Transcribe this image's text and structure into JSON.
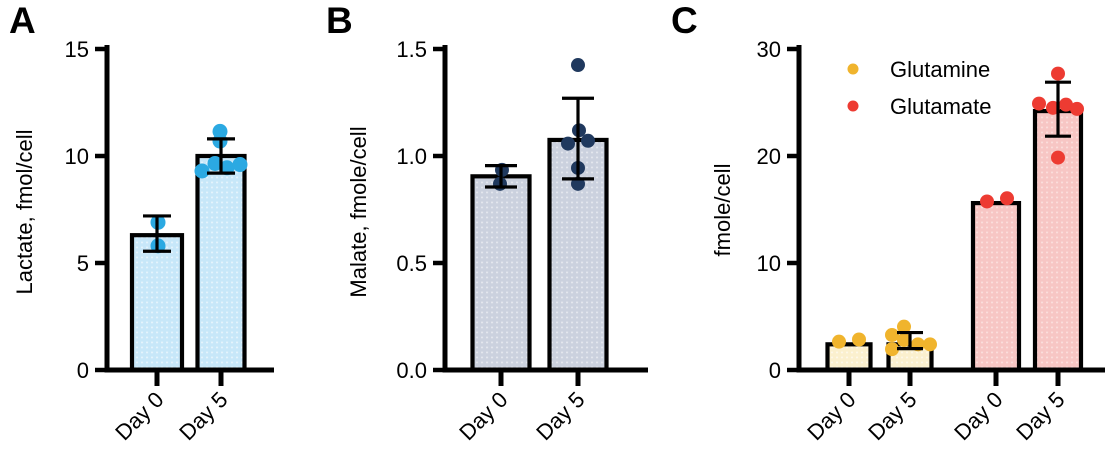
{
  "figure": {
    "background": "#ffffff",
    "axis_color": "#000000",
    "text_color": "#000000"
  },
  "chart_data": [
    {
      "panel_label": "A",
      "type": "bar",
      "title": "",
      "xlabel": "",
      "ylabel": "Lactate, fmol/cell",
      "ylim": [
        0,
        15
      ],
      "grid": false,
      "yticks": [
        {
          "v": 0,
          "label": "0"
        },
        {
          "v": 5,
          "label": "5"
        },
        {
          "v": 10,
          "label": "10"
        },
        {
          "v": 15,
          "label": "15"
        }
      ],
      "bar_fill": "#C7E7F9",
      "bar_texture": "#E4F3FC",
      "dot_color": "#2BA9E2",
      "categories": [
        "Day 0",
        "Day 5"
      ],
      "groups": [
        {
          "label": "Day 0",
          "mean": 6.3,
          "err_low": 5.55,
          "err_high": 7.2,
          "points": [
            {
              "dx": 1,
              "v": 6.9
            },
            {
              "dx": 1,
              "v": 5.8
            }
          ]
        },
        {
          "label": "Day 5",
          "mean": 10.0,
          "err_low": 9.2,
          "err_high": 10.8,
          "points": [
            {
              "dx": -1,
              "v": 11.15
            },
            {
              "dx": -1,
              "v": 10.7
            },
            {
              "dx": -19,
              "v": 9.3
            },
            {
              "dx": -6,
              "v": 9.65
            },
            {
              "dx": 6,
              "v": 9.45
            },
            {
              "dx": 19,
              "v": 9.6
            }
          ]
        }
      ]
    },
    {
      "panel_label": "B",
      "type": "bar",
      "title": "",
      "xlabel": "",
      "ylabel": "Malate, fmole/cell",
      "ylim": [
        0,
        1.5
      ],
      "grid": false,
      "yticks": [
        {
          "v": 0,
          "label": "0.0"
        },
        {
          "v": 0.5,
          "label": "0.5"
        },
        {
          "v": 1.0,
          "label": "1.0"
        },
        {
          "v": 1.5,
          "label": "1.5"
        }
      ],
      "bar_fill": "#CBD1DE",
      "bar_texture": "#E3E6ED",
      "dot_color": "#20395E",
      "categories": [
        "Day 0",
        "Day 5"
      ],
      "groups": [
        {
          "label": "Day 0",
          "mean": 0.905,
          "err_low": 0.855,
          "err_high": 0.955,
          "points": [
            {
              "dx": 1,
              "v": 0.935
            },
            {
              "dx": -1,
              "v": 0.87
            }
          ]
        },
        {
          "label": "Day 5",
          "mean": 1.075,
          "err_low": 0.893,
          "err_high": 1.27,
          "points": [
            {
              "dx": 0,
              "v": 1.425
            },
            {
              "dx": 1,
              "v": 1.12
            },
            {
              "dx": -10,
              "v": 1.058
            },
            {
              "dx": 10,
              "v": 1.071
            },
            {
              "dx": 0,
              "v": 0.944
            },
            {
              "dx": 0,
              "v": 0.87
            }
          ]
        }
      ]
    },
    {
      "panel_label": "C",
      "type": "bar",
      "title": "",
      "xlabel": "",
      "ylabel": "fmole/cell",
      "ylim": [
        0,
        30
      ],
      "grid": false,
      "yticks": [
        {
          "v": 0,
          "label": "0"
        },
        {
          "v": 10,
          "label": "10"
        },
        {
          "v": 20,
          "label": "20"
        },
        {
          "v": 30,
          "label": "30"
        }
      ],
      "series": [
        {
          "name": "Glutamine",
          "bar_fill": "#FBF0CE",
          "bar_texture": "#FDF8E9",
          "dot_color": "#F0B42D"
        },
        {
          "name": "Glutamate",
          "bar_fill": "#F7C6C4",
          "bar_texture": "#FBDDDB",
          "dot_color": "#ED3B32"
        }
      ],
      "legend": {
        "position": "top-left-inside",
        "entries": [
          "Glutamine",
          "Glutamate"
        ]
      },
      "categories": [
        "Day 0",
        "Day 5",
        "Day 0",
        "Day 5"
      ],
      "groups": [
        {
          "series": "Glutamine",
          "label": "Day 0",
          "mean": 2.4,
          "err_low": null,
          "err_high": null,
          "points": [
            {
              "dx": -10,
              "v": 2.65
            },
            {
              "dx": 10,
              "v": 2.85
            }
          ]
        },
        {
          "series": "Glutamine",
          "label": "Day 5",
          "mean": 2.4,
          "err_low": 2.0,
          "err_high": 3.5,
          "points": [
            {
              "dx": -6,
              "v": 4.05
            },
            {
              "dx": -18,
              "v": 3.27
            },
            {
              "dx": -6,
              "v": 2.8
            },
            {
              "dx": 8,
              "v": 2.4
            },
            {
              "dx": 20,
              "v": 2.4
            },
            {
              "dx": -18,
              "v": 1.95
            }
          ]
        },
        {
          "series": "Glutamate",
          "label": "Day 0",
          "mean": 15.6,
          "err_low": null,
          "err_high": null,
          "points": [
            {
              "dx": -9,
              "v": 15.75
            },
            {
              "dx": 11,
              "v": 16.05
            }
          ]
        },
        {
          "series": "Glutamate",
          "label": "Day 5",
          "mean": 24.2,
          "err_low": 21.85,
          "err_high": 26.9,
          "points": [
            {
              "dx": 0,
              "v": 27.7
            },
            {
              "dx": -19,
              "v": 24.9
            },
            {
              "dx": -5,
              "v": 24.5
            },
            {
              "dx": 8,
              "v": 24.8
            },
            {
              "dx": 19,
              "v": 24.4
            },
            {
              "dx": 0,
              "v": 19.85
            }
          ]
        }
      ]
    }
  ]
}
